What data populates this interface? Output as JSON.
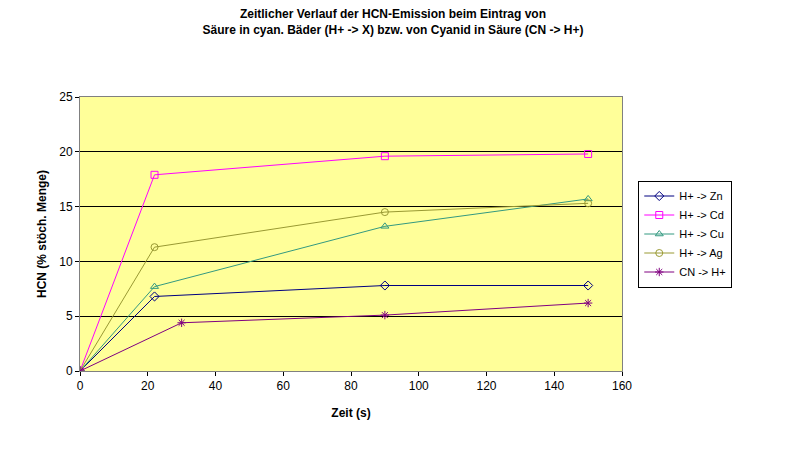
{
  "chart_data": {
    "type": "line",
    "title": "Zeitlicher Verlauf der HCN-Emission beim Eintrag von\nSäure in cyan. Bäder (H+ -> X) bzw. von Cyanid in Säure (CN -> H+)",
    "x_label": "Zeit (s)",
    "y_label": "HCN (% stöch. Menge)",
    "xlim": [
      0,
      160
    ],
    "xticks": [
      0,
      20,
      40,
      60,
      80,
      100,
      120,
      140,
      160
    ],
    "ylim": [
      0,
      25
    ],
    "yticks": [
      0,
      5,
      10,
      15,
      20,
      25
    ],
    "grid": "y",
    "legend": "right",
    "series": [
      {
        "name": "H+ -> Zn",
        "color": "#000080",
        "marker": "diamond-open",
        "x": [
          0,
          22,
          90,
          150
        ],
        "values": [
          0,
          6.8,
          7.8,
          7.8
        ]
      },
      {
        "name": "H+ -> Cd",
        "color": "#ff00ff",
        "marker": "square-open",
        "x": [
          0,
          22,
          90,
          150
        ],
        "values": [
          0,
          17.9,
          19.6,
          19.8
        ]
      },
      {
        "name": "H+ -> Cu",
        "color": "#339980",
        "marker": "triangle-up-open",
        "x": [
          0,
          22,
          90,
          150
        ],
        "values": [
          0,
          7.7,
          13.2,
          15.7
        ]
      },
      {
        "name": "H+ -> Ag",
        "color": "#999933",
        "marker": "circle-open",
        "x": [
          0,
          22,
          90,
          150
        ],
        "values": [
          0,
          11.3,
          14.5,
          15.3
        ]
      },
      {
        "name": "CN -> H+",
        "color": "#800080",
        "marker": "asterisk-open",
        "x": [
          0,
          30,
          90,
          150
        ],
        "values": [
          0,
          4.4,
          5.1,
          6.2
        ]
      }
    ]
  }
}
